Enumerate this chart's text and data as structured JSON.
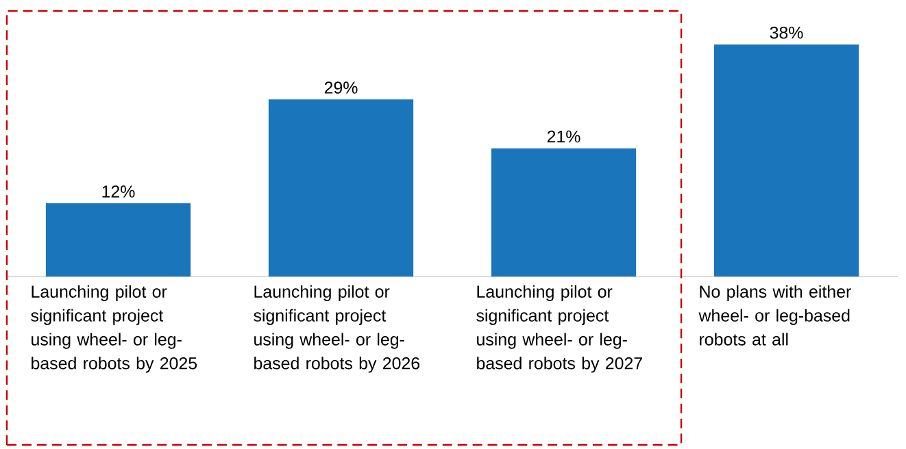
{
  "chart_data": {
    "type": "bar",
    "categories": [
      "Launching pilot or significant project using wheel- or leg-based robots by 2025",
      "Launching pilot or significant project using wheel- or leg-based robots by 2026",
      "Launching pilot or significant project using wheel- or leg-based robots by 2027",
      "No plans with either wheel- or leg-based robots at all"
    ],
    "values": [
      12,
      29,
      21,
      38
    ],
    "value_labels": [
      "12%",
      "29%",
      "21%",
      "38%"
    ],
    "color": "#1b75bb",
    "tick_labels": "x"
  }
}
